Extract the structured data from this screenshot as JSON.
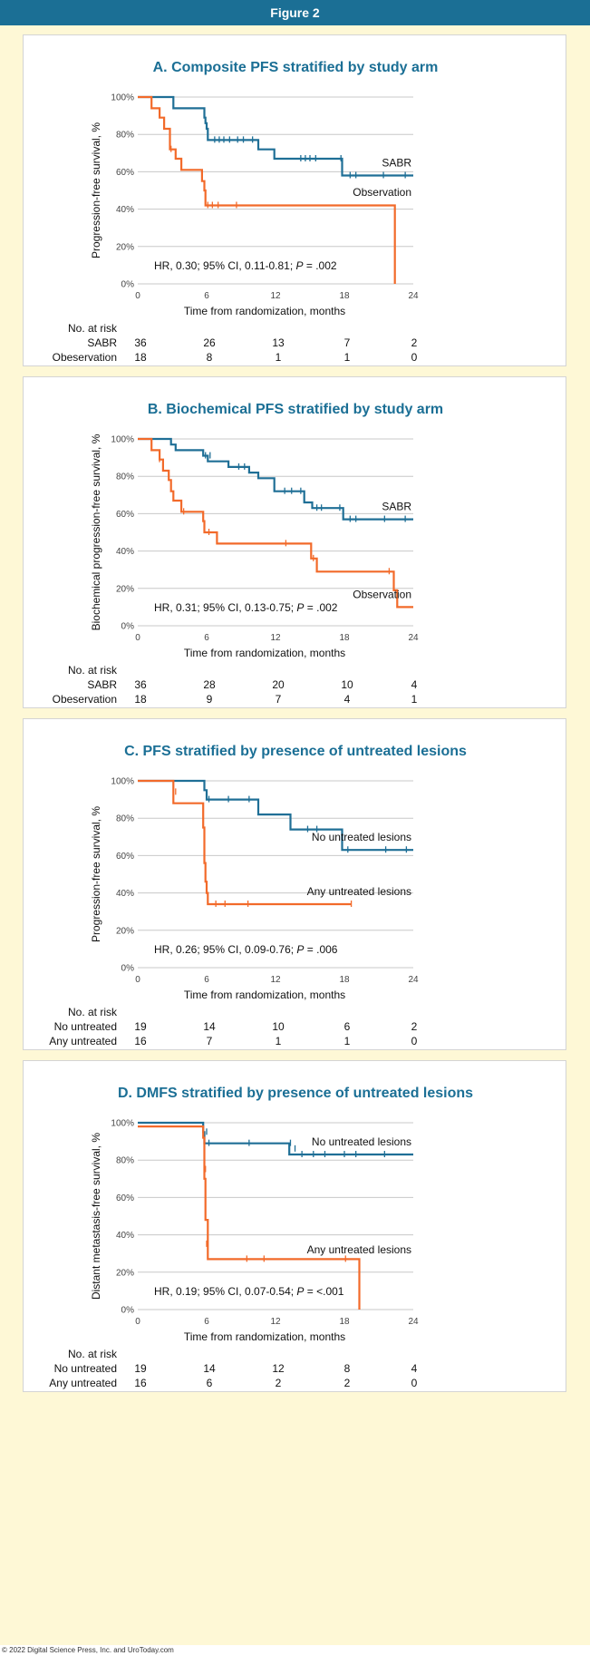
{
  "header": {
    "title": "Figure 2"
  },
  "footer": {
    "text": "© 2022 Digital Science Press, Inc. and UroToday.com"
  },
  "colors": {
    "accent": "#1b6f95",
    "frame": "#fef8d6",
    "blue_series": "#1f6f96",
    "orange_series": "#f26a2a"
  },
  "chart_data": [
    {
      "type": "line",
      "title": "A. Composite PFS stratified by study arm",
      "xlabel": "Time from randomization, months",
      "ylabel": "Progression-free survival, %",
      "xlim": [
        0,
        24
      ],
      "ylim": [
        0,
        100
      ],
      "xticks": [
        "0",
        "6",
        "12",
        "18",
        "24"
      ],
      "yticks": [
        "0%",
        "20%",
        "40%",
        "60%",
        "80%",
        "100%"
      ],
      "grid": true,
      "hr_prefix": "HR, 0.30; 95% CI, 0.11-0.81; ",
      "hr_p": "P",
      "hr_suffix": " = .002",
      "series": [
        {
          "name": "SABR",
          "color": "#1f6f96",
          "x": [
            0,
            3.1,
            3.1,
            5.8,
            5.8,
            5.9,
            5.9,
            6.0,
            6.0,
            6.1,
            6.1,
            10.5,
            10.5,
            11.9,
            11.9,
            17.8,
            17.8,
            24
          ],
          "y": [
            100,
            100,
            94,
            94,
            89,
            89,
            86,
            86,
            83,
            83,
            77,
            77,
            72,
            72,
            67,
            67,
            58,
            58
          ],
          "censor_x": [
            6.7,
            7.1,
            7.5,
            8.0,
            8.7,
            9.2,
            10.0,
            14.2,
            14.6,
            15.0,
            15.5,
            17.7,
            18.5,
            19.0,
            21.4,
            23.3
          ],
          "censor_y": [
            77,
            77,
            77,
            77,
            77,
            77,
            77,
            67,
            67,
            67,
            67,
            67,
            58,
            58,
            58,
            58
          ]
        },
        {
          "name": "Observation",
          "color": "#f26a2a",
          "x": [
            0,
            1.2,
            1.2,
            1.9,
            1.9,
            2.3,
            2.3,
            2.8,
            2.8,
            3.3,
            3.3,
            3.8,
            3.8,
            5.6,
            5.6,
            5.8,
            5.8,
            5.9,
            5.9,
            22.4,
            22.4
          ],
          "y": [
            100,
            100,
            94,
            94,
            89,
            89,
            83,
            83,
            72,
            72,
            67,
            67,
            61,
            61,
            55,
            55,
            50,
            50,
            42,
            42,
            0
          ],
          "censor_x": [
            2.9,
            6.1,
            6.5,
            7.0,
            8.6
          ],
          "censor_y": [
            72,
            42,
            42,
            42,
            42
          ]
        }
      ],
      "at_risk": {
        "header": "No. at risk",
        "rows": [
          {
            "label": "SABR",
            "values": [
              "36",
              "26",
              "13",
              "7",
              "2"
            ]
          },
          {
            "label": "Obeservation",
            "values": [
              "18",
              "8",
              "1",
              "1",
              "0"
            ]
          }
        ]
      }
    },
    {
      "type": "line",
      "title": "B. Biochemical PFS stratified by study arm",
      "xlabel": "Time from randomization, months",
      "ylabel": "Biochemical progression-free survival, %",
      "xlim": [
        0,
        24
      ],
      "ylim": [
        0,
        100
      ],
      "xticks": [
        "0",
        "6",
        "12",
        "18",
        "24"
      ],
      "yticks": [
        "0%",
        "20%",
        "40%",
        "60%",
        "80%",
        "100%"
      ],
      "grid": true,
      "hr_prefix": "HR, 0.31; 95% CI, 0.13-0.75; ",
      "hr_p": "P",
      "hr_suffix": " = .002",
      "series": [
        {
          "name": "SABR",
          "color": "#1f6f96",
          "x": [
            0,
            2.9,
            2.9,
            3.3,
            3.3,
            5.7,
            5.7,
            6.1,
            6.1,
            7.9,
            7.9,
            9.7,
            9.7,
            10.5,
            10.5,
            11.9,
            11.9,
            14.5,
            14.5,
            15.2,
            15.2,
            17.9,
            17.9,
            24
          ],
          "y": [
            100,
            100,
            97,
            97,
            94,
            94,
            91,
            91,
            88,
            88,
            85,
            85,
            82,
            82,
            79,
            79,
            72,
            72,
            66,
            66,
            63,
            63,
            57,
            57
          ],
          "censor_x": [
            5.9,
            6.3,
            8.8,
            9.3,
            12.8,
            13.4,
            14.2,
            15.6,
            16.0,
            17.6,
            18.5,
            19.0,
            21.5,
            23.3
          ],
          "censor_y": [
            91,
            91,
            85,
            85,
            72,
            72,
            72,
            63,
            63,
            63,
            57,
            57,
            57,
            57
          ]
        },
        {
          "name": "Observation",
          "color": "#f26a2a",
          "x": [
            0,
            1.2,
            1.2,
            1.9,
            1.9,
            2.2,
            2.2,
            2.7,
            2.7,
            2.9,
            2.9,
            3.1,
            3.1,
            3.8,
            3.8,
            5.7,
            5.7,
            5.8,
            5.8,
            6.9,
            6.9,
            15.1,
            15.1,
            15.6,
            15.6,
            22.3,
            22.3,
            22.6,
            22.6,
            24
          ],
          "y": [
            100,
            100,
            94,
            94,
            89,
            89,
            83,
            83,
            78,
            78,
            72,
            72,
            67,
            67,
            61,
            61,
            56,
            56,
            50,
            50,
            44,
            44,
            36,
            36,
            29,
            29,
            19,
            19,
            10,
            10
          ],
          "censor_x": [
            1.9,
            4.0,
            6.2,
            12.9,
            15.3,
            21.9
          ],
          "censor_y": [
            89,
            61,
            50,
            44,
            36,
            29
          ]
        }
      ],
      "at_risk": {
        "header": "No. at risk",
        "rows": [
          {
            "label": "SABR",
            "values": [
              "36",
              "28",
              "20",
              "10",
              "4"
            ]
          },
          {
            "label": "Obeservation",
            "values": [
              "18",
              "9",
              "7",
              "4",
              "1"
            ]
          }
        ]
      }
    },
    {
      "type": "line",
      "title": "C. PFS stratified by presence of untreated lesions",
      "xlabel": "Time from randomization, months",
      "ylabel": "Progression-free survival, %",
      "xlim": [
        0,
        24
      ],
      "ylim": [
        0,
        100
      ],
      "xticks": [
        "0",
        "6",
        "12",
        "18",
        "24"
      ],
      "yticks": [
        "0%",
        "20%",
        "40%",
        "60%",
        "80%",
        "100%"
      ],
      "grid": true,
      "hr_prefix": "HR, 0.26; 95% CI, 0.09-0.76; ",
      "hr_p": "P",
      "hr_suffix": " = .006",
      "series": [
        {
          "name": "No untreated lesions",
          "color": "#1f6f96",
          "x": [
            0,
            5.8,
            5.8,
            6.0,
            6.0,
            10.5,
            10.5,
            13.3,
            13.3,
            17.8,
            17.8,
            24
          ],
          "y": [
            100,
            100,
            95,
            95,
            90,
            90,
            82,
            82,
            74,
            74,
            63,
            63
          ],
          "censor_x": [
            6.2,
            7.9,
            9.7,
            14.8,
            15.6,
            18.3,
            21.6,
            23.4
          ],
          "censor_y": [
            90,
            90,
            90,
            74,
            74,
            63,
            63,
            63
          ]
        },
        {
          "name": "Any untreated lesions",
          "color": "#f26a2a",
          "x": [
            0,
            3.1,
            3.1,
            5.7,
            5.7,
            5.8,
            5.8,
            5.9,
            5.9,
            6.0,
            6.0,
            6.1,
            6.1,
            18.6
          ],
          "y": [
            100,
            100,
            88,
            88,
            75,
            75,
            56,
            56,
            46,
            46,
            40,
            40,
            34,
            34
          ],
          "censor_x": [
            3.3,
            6.0,
            6.8,
            7.6,
            9.6,
            18.6
          ],
          "censor_y": [
            94,
            42,
            34,
            34,
            34,
            34
          ]
        }
      ],
      "at_risk": {
        "header": "No. at risk",
        "rows": [
          {
            "label": "No untreated",
            "values": [
              "19",
              "14",
              "10",
              "6",
              "2"
            ]
          },
          {
            "label": "Any untreated",
            "values": [
              "16",
              "7",
              "1",
              "1",
              "0"
            ]
          }
        ]
      }
    },
    {
      "type": "line",
      "title": "D. DMFS stratified by presence of untreated lesions",
      "xlabel": "Time from randomization, months",
      "ylabel": "Distant metastasis-free survival, %",
      "xlim": [
        0,
        24
      ],
      "ylim": [
        0,
        100
      ],
      "xticks": [
        "0",
        "6",
        "12",
        "18",
        "24"
      ],
      "yticks": [
        "0%",
        "20%",
        "40%",
        "60%",
        "80%",
        "100%"
      ],
      "grid": true,
      "hr_prefix": "HR, 0.19; 95% CI, 0.07-0.54; ",
      "hr_p": "P",
      "hr_suffix": " = <.001",
      "series": [
        {
          "name": "No untreated lesions",
          "color": "#1f6f96",
          "x": [
            0,
            5.7,
            5.7,
            5.8,
            5.8,
            13.2,
            13.2,
            24
          ],
          "y": [
            100,
            100,
            95,
            95,
            89,
            89,
            83,
            83
          ],
          "censor_x": [
            6.0,
            6.2,
            9.7,
            13.3,
            13.7,
            14.3,
            15.3,
            16.3,
            18.0,
            19.0,
            21.5
          ],
          "censor_y": [
            95,
            89,
            89,
            89,
            86,
            83,
            83,
            83,
            83,
            83,
            83
          ]
        },
        {
          "name": "Any untreated lesions",
          "color": "#f26a2a",
          "x": [
            0,
            5.7,
            5.7,
            5.8,
            5.8,
            5.9,
            5.9,
            6.1,
            6.1,
            19.3,
            19.3
          ],
          "y": [
            98,
            98,
            92,
            92,
            70,
            70,
            48,
            48,
            27,
            27,
            0
          ],
          "censor_x": [
            5.9,
            6.0,
            9.5,
            11.0,
            18.1,
            19.3
          ],
          "censor_y": [
            75,
            35,
            27,
            27,
            27,
            3
          ]
        }
      ],
      "at_risk": {
        "header": "No. at risk",
        "rows": [
          {
            "label": "No untreated",
            "values": [
              "19",
              "14",
              "12",
              "8",
              "4"
            ]
          },
          {
            "label": "Any untreated",
            "values": [
              "16",
              "6",
              "2",
              "2",
              "0"
            ]
          }
        ]
      }
    }
  ]
}
